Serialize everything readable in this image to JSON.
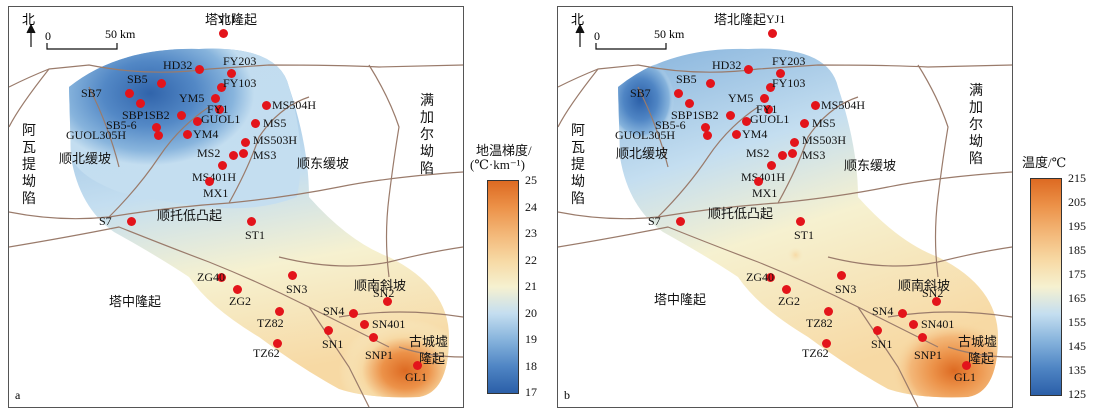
{
  "panels": [
    {
      "id": "a",
      "corner": "a",
      "regions": {
        "north_uplift": "塔北隆起",
        "awati": [
          "阿",
          "瓦",
          "提",
          "坳",
          "陷"
        ],
        "manjiaer": [
          "满",
          "加",
          "尔",
          "坳",
          "陷"
        ],
        "shunbei_slope": "顺北缓坡",
        "shundong_slope": "顺东缓坡",
        "shuntuo": "顺托低凸起",
        "tazhong": "塔中隆起",
        "shunnan": "顺南斜坡",
        "gucheng": [
          "古城墟",
          "隆起"
        ]
      },
      "wells": [
        "YJ1",
        "HD32",
        "FY203",
        "SB5",
        "FY103",
        "SB7",
        "YM5",
        "SBP1",
        "FY1",
        "MS504H",
        "SB2",
        "GUOL1",
        "SB5-6",
        "MS5",
        "GUOL305H",
        "YM4",
        "MS503H",
        "MS2",
        "MS3",
        "MS401H",
        "MX1",
        "S7",
        "ST1",
        "ZG40",
        "SN3",
        "ZG2",
        "SN2",
        "SN4",
        "TZ82",
        "SN401",
        "SN1",
        "TZ62",
        "SNP1",
        "GL1"
      ]
    },
    {
      "id": "b",
      "corner": "b",
      "regions": {
        "north_uplift": "塔北隆起",
        "awati": [
          "阿",
          "瓦",
          "提",
          "坳",
          "陷"
        ],
        "manjiaer": [
          "满",
          "加",
          "尔",
          "坳",
          "陷"
        ],
        "shunbei_slope": "顺北缓坡",
        "shundong_slope": "顺东缓坡",
        "shuntuo": "顺托低凸起",
        "tazhong": "塔中隆起",
        "shunnan": "顺南斜坡",
        "gucheng": [
          "古城墟",
          "隆起"
        ]
      },
      "wells": [
        "YJ1",
        "HD32",
        "FY203",
        "SB5",
        "FY103",
        "SB7",
        "YM5",
        "SBP1",
        "FY1",
        "MS504H",
        "SB2",
        "GUOL1",
        "SB5-6",
        "MS5",
        "GUOL305H",
        "YM4",
        "MS503H",
        "MS2",
        "MS3",
        "MS401H",
        "MX1",
        "S7",
        "ST1",
        "ZG40",
        "SN3",
        "ZG2",
        "SN2",
        "SN4",
        "TZ82",
        "SN401",
        "SN1",
        "TZ62",
        "SNP1",
        "GL1"
      ]
    }
  ],
  "north_label": "北",
  "scale": {
    "zero": "0",
    "distance": "50 km"
  },
  "legend_a": {
    "title_line1": "地温梯度/",
    "title_line2": "(℃·km⁻¹)",
    "ticks": [
      "25",
      "24",
      "23",
      "22",
      "21",
      "20",
      "19",
      "18",
      "17"
    ],
    "colors": [
      "#2b5fa8",
      "#4f85c4",
      "#86b3dc",
      "#c4def0",
      "#f6f1d0",
      "#f7d9a4",
      "#f3b778",
      "#ec9249",
      "#dd6a22"
    ]
  },
  "legend_b": {
    "title": "温度/℃",
    "ticks": [
      "215",
      "205",
      "195",
      "185",
      "175",
      "165",
      "155",
      "145",
      "135",
      "125"
    ],
    "colors": [
      "#2b5fa8",
      "#4f85c4",
      "#86b3dc",
      "#c4def0",
      "#f6f1d0",
      "#f7d9a4",
      "#f3b778",
      "#ec9249",
      "#dd6a22"
    ]
  },
  "colors": {
    "well_dot": "#e3141b",
    "boundary": "#9a7b6b"
  }
}
